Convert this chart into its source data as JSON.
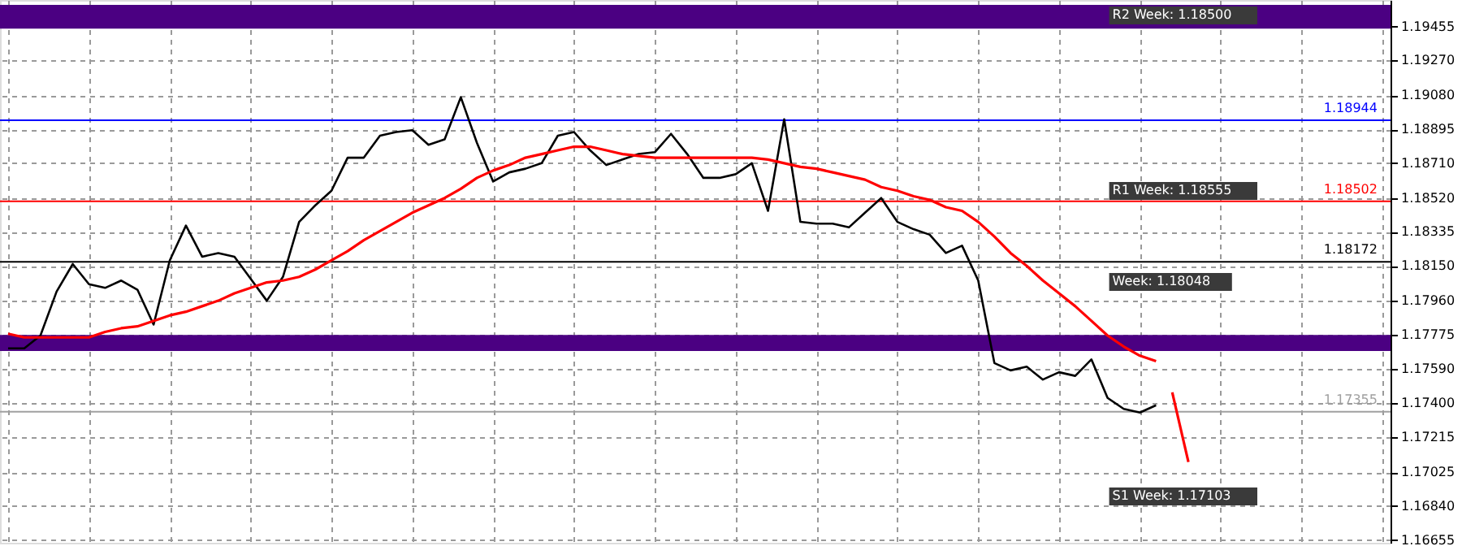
{
  "chart_data": {
    "type": "line",
    "categories": [
      null,
      null,
      null,
      null,
      null,
      null,
      null,
      null,
      null,
      null,
      null,
      null,
      null,
      null,
      null,
      null,
      null,
      null,
      null,
      null,
      null,
      null,
      null,
      null,
      null,
      null,
      null,
      null,
      null,
      null,
      null,
      null,
      null,
      null,
      null,
      null,
      null,
      null,
      null,
      null,
      null,
      null,
      null,
      null,
      null,
      null,
      null,
      null,
      null,
      null,
      null,
      null,
      null,
      null,
      null,
      null,
      null,
      null,
      null,
      null,
      null,
      null,
      null,
      null,
      null,
      null,
      null,
      null,
      null,
      null,
      null,
      null,
      null,
      null,
      null,
      null,
      null,
      null,
      null,
      null,
      null,
      null,
      null,
      null,
      null,
      null
    ],
    "series": [
      {
        "color": "#000000",
        "values": [
          1.177,
          1.177,
          1.1777,
          1.1801,
          1.1816,
          1.1805,
          1.1803,
          1.1807,
          1.1802,
          1.1783,
          1.1818,
          1.1837,
          1.182,
          1.1822,
          1.182,
          1.1808,
          1.1796,
          1.1809,
          1.1839,
          1.1848,
          1.1856,
          1.1874,
          1.1874,
          1.1886,
          1.1888,
          1.1889,
          1.1881,
          1.1884,
          1.1907,
          1.1882,
          1.1861,
          1.1866,
          1.1868,
          1.1871,
          1.1886,
          1.1888,
          1.1878,
          1.187,
          1.1873,
          1.1876,
          1.1877,
          1.1887,
          1.1876,
          1.1863,
          1.1863,
          1.1865,
          1.1871,
          1.1845,
          1.1895,
          1.1839,
          1.1838,
          1.1838,
          1.1836,
          1.1844,
          1.1852,
          1.1839,
          1.1835,
          1.1832,
          1.1822,
          1.1826,
          1.1807,
          1.1762,
          1.1758,
          1.176,
          1.1753,
          1.1757,
          1.1755,
          1.1764,
          1.1743,
          1.1737,
          1.1735,
          1.1739,
          null,
          null,
          null,
          null,
          null,
          null,
          null,
          null,
          null,
          null,
          null,
          null,
          null,
          null
        ]
      },
      {
        "color": "#ff0000",
        "values": [
          1.1778,
          1.1776,
          1.1776,
          1.1776,
          1.1776,
          1.1776,
          1.1779,
          1.1781,
          1.1782,
          1.1785,
          1.1788,
          1.179,
          1.1793,
          1.1796,
          1.18,
          1.1803,
          1.1806,
          1.1807,
          1.1809,
          1.1813,
          1.1818,
          1.1823,
          1.1829,
          1.1834,
          1.1839,
          1.1844,
          1.1848,
          1.1852,
          1.1857,
          1.1863,
          1.1867,
          1.187,
          1.1874,
          1.1876,
          1.1878,
          1.188,
          1.188,
          1.1878,
          1.1876,
          1.1875,
          1.1874,
          1.1874,
          1.1874,
          1.1874,
          1.1874,
          1.1874,
          1.1874,
          1.1873,
          1.1871,
          1.1869,
          1.1868,
          1.1866,
          1.1864,
          1.1862,
          1.1858,
          1.1856,
          1.1853,
          1.1851,
          1.1847,
          1.1845,
          1.1839,
          1.1831,
          1.1822,
          1.1815,
          1.1807,
          1.18,
          1.1793,
          1.1785,
          1.1777,
          1.1771,
          1.1766,
          1.1763,
          null,
          null,
          null,
          null,
          null,
          null,
          null,
          null,
          null,
          null,
          null,
          null,
          null,
          null
        ]
      },
      {
        "color": "#ff0000",
        "values": [
          null,
          null,
          null,
          null,
          null,
          null,
          null,
          null,
          null,
          null,
          null,
          null,
          null,
          null,
          null,
          null,
          null,
          null,
          null,
          null,
          null,
          null,
          null,
          null,
          null,
          null,
          null,
          null,
          null,
          null,
          null,
          null,
          null,
          null,
          null,
          null,
          null,
          null,
          null,
          null,
          null,
          null,
          null,
          null,
          null,
          null,
          null,
          null,
          null,
          null,
          null,
          null,
          null,
          null,
          null,
          null,
          null,
          null,
          null,
          null,
          null,
          null,
          null,
          null,
          null,
          null,
          null,
          null,
          null,
          null,
          null,
          null,
          1.1746,
          1.1708,
          null,
          null,
          null,
          null,
          null,
          null,
          null,
          null,
          null,
          null,
          null,
          null
        ]
      }
    ],
    "ylim": [
      1.1664,
      1.196
    ],
    "yticks": [
      1.19455,
      {
        "value": 1.1927,
        "label": "1.19270"
      },
      {
        "value": 1.1908,
        "label": "1.19080"
      },
      1.18895,
      {
        "value": 1.1871,
        "label": "1.18710"
      },
      {
        "value": 1.1852,
        "label": "1.18520"
      },
      1.18335,
      {
        "value": 1.1815,
        "label": "1.18150"
      },
      {
        "value": 1.1796,
        "label": "1.17960"
      },
      1.17775,
      {
        "value": 1.1759,
        "label": "1.17590"
      },
      {
        "value": 1.174,
        "label": "1.17400"
      },
      1.17215,
      1.17025,
      {
        "value": 1.1684,
        "label": "1.16840"
      },
      1.16655
    ],
    "ref_lines": [
      {
        "axis": "y",
        "value": 1.18944,
        "label": "1.18944",
        "color": "#0000ff"
      },
      {
        "axis": "y",
        "value": 1.18502,
        "label": "1.18502",
        "color": "#ff0000"
      },
      {
        "axis": "y",
        "value": 1.18172,
        "label": "1.18172",
        "color": "#000000"
      },
      {
        "axis": "y",
        "value": 1.17355,
        "label": "1.17355",
        "color": "#a0a0a0"
      }
    ],
    "bands": [
      {
        "axis": "y",
        "from": 1.19444,
        "to": 1.19573,
        "color": "#4b0082"
      },
      {
        "axis": "y",
        "from": 1.17686,
        "to": 1.17773,
        "color": "#4b0082"
      }
    ],
    "annotations": [
      "R2 Week: 1.18500",
      "R1 Week: 1.18555",
      "Week: 1.18048",
      "S1 Week: 1.17103"
    ],
    "grid": true,
    "tick_labels": "y",
    "marker": "none",
    "line_style": "solid"
  }
}
